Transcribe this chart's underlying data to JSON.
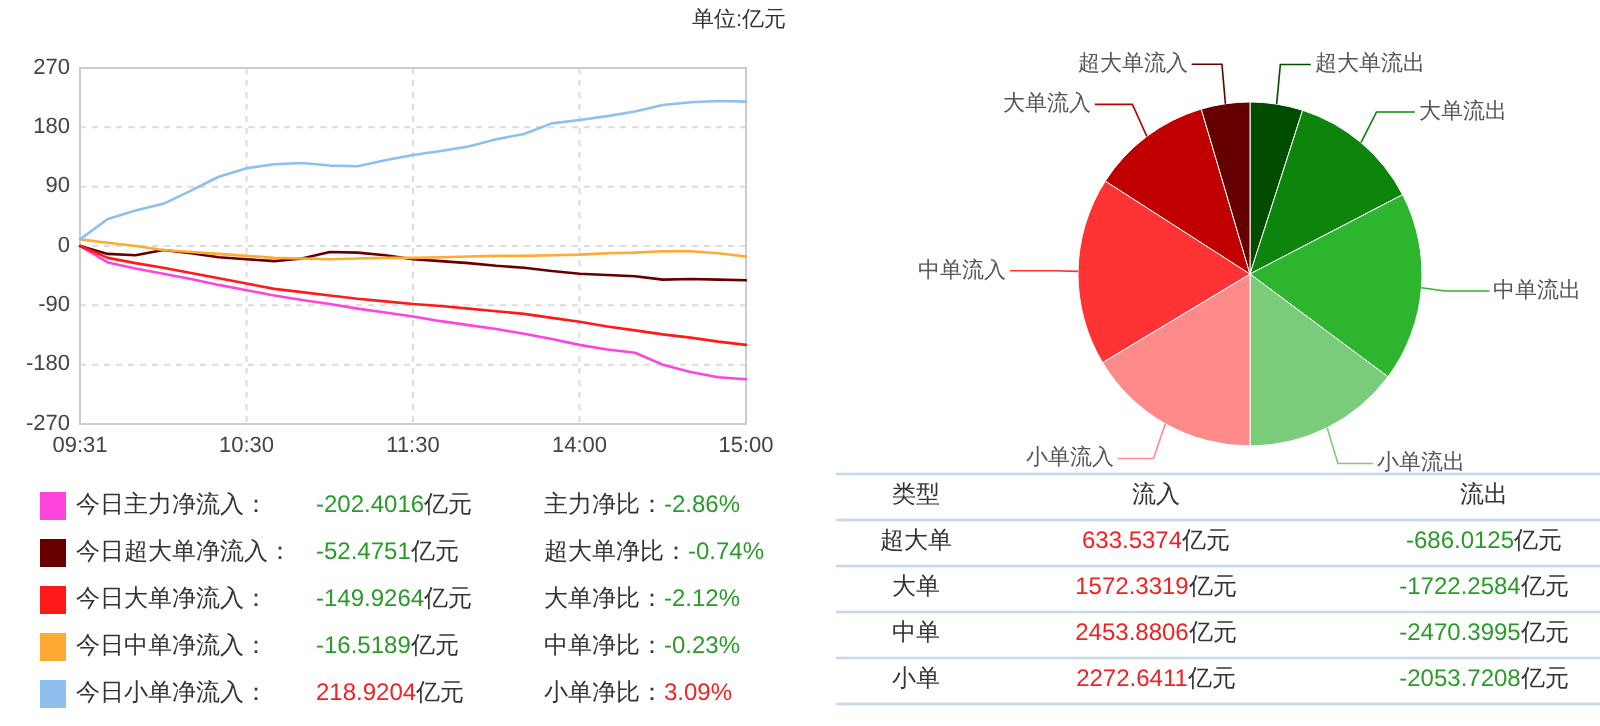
{
  "chart_data": [
    {
      "type": "line",
      "title": "单位:亿元",
      "categories": [
        "09:31",
        null,
        null,
        null,
        null,
        null,
        "10:30",
        null,
        null,
        null,
        null,
        null,
        "11:30",
        null,
        null,
        null,
        null,
        null,
        "14:00",
        null,
        null,
        null,
        null,
        null,
        "15:00"
      ],
      "ylim": [
        -270,
        270
      ],
      "yticks": [
        270,
        180,
        90,
        0,
        -90,
        -180,
        -270
      ],
      "grid": true,
      "legend": "bottom",
      "series": [
        {
          "name": "今日主力净流入：",
          "color": "#ff44dd",
          "values": [
            0,
            -25,
            -34,
            -42,
            -50,
            -59,
            -67,
            -75,
            -82,
            -88,
            -95,
            -101,
            -107,
            -114,
            -120,
            -126,
            -133,
            -141,
            -150,
            -157,
            -162,
            -180,
            -191,
            -199,
            -202
          ]
        },
        {
          "name": "今日超大单净流入：",
          "color": "#660000",
          "values": [
            0,
            -12,
            -14,
            -6,
            -11,
            -17,
            -20,
            -23,
            -19,
            -9,
            -10,
            -14,
            -20,
            -23,
            -26,
            -30,
            -33,
            -38,
            -42,
            -44,
            -46,
            -51,
            -50,
            -51,
            -52
          ]
        },
        {
          "name": "今日大单净流入：",
          "color": "#ff1a1a",
          "values": [
            0,
            -18,
            -26,
            -33,
            -41,
            -49,
            -57,
            -65,
            -70,
            -75,
            -80,
            -84,
            -88,
            -91,
            -95,
            -99,
            -103,
            -109,
            -115,
            -122,
            -128,
            -134,
            -139,
            -145,
            -150
          ]
        },
        {
          "name": "今日中单净流入：",
          "color": "#ffaa33",
          "values": [
            10,
            5,
            0,
            -6,
            -9,
            -12,
            -15,
            -18,
            -19,
            -20,
            -19,
            -18,
            -18,
            -17,
            -16,
            -15,
            -15,
            -14,
            -13,
            -11,
            -10,
            -8,
            -8,
            -11,
            -16
          ]
        },
        {
          "name": "今日小单净流入：",
          "color": "#8fbfee",
          "values": [
            10,
            41,
            54,
            64,
            84,
            105,
            118,
            124,
            126,
            122,
            121,
            130,
            138,
            144,
            151,
            162,
            170,
            186,
            191,
            197,
            204,
            214,
            218,
            220,
            219
          ]
        }
      ],
      "annotations": [
        "-202.4016亿元",
        "主力净比：-2.86%",
        "-52.4751亿元",
        "超大单净比：-0.74%",
        "-149.9264亿元",
        "大单净比：-2.12%",
        "-16.5189亿元",
        "中单净比：-0.23%",
        "218.9204亿元",
        "小单净比：3.09%"
      ]
    },
    {
      "type": "pie",
      "categories": [
        "超大单流出",
        "大单流出",
        "中单流出",
        "小单流出",
        "小单流入",
        "中单流入",
        "大单流入",
        "超大单流入"
      ],
      "values": [
        4.95,
        12.42,
        17.82,
        14.81,
        16.39,
        17.7,
        11.34,
        4.57
      ],
      "colors": [
        "#004d00",
        "#0d850d",
        "#2db52d",
        "#7acc7a",
        "#ff8a8a",
        "#ff3333",
        "#c00000",
        "#660000"
      ]
    },
    {
      "type": "other",
      "annotations": [
        "类型",
        "流入",
        "流出",
        "超大单",
        "633.5374亿元",
        "-686.0125亿元",
        "大单",
        "1572.3319亿元",
        "-1722.2584亿元",
        "中单",
        "2453.8806亿元",
        "-2470.3995亿元",
        "小单",
        "2272.6411亿元",
        "-2053.7208亿元"
      ]
    }
  ]
}
